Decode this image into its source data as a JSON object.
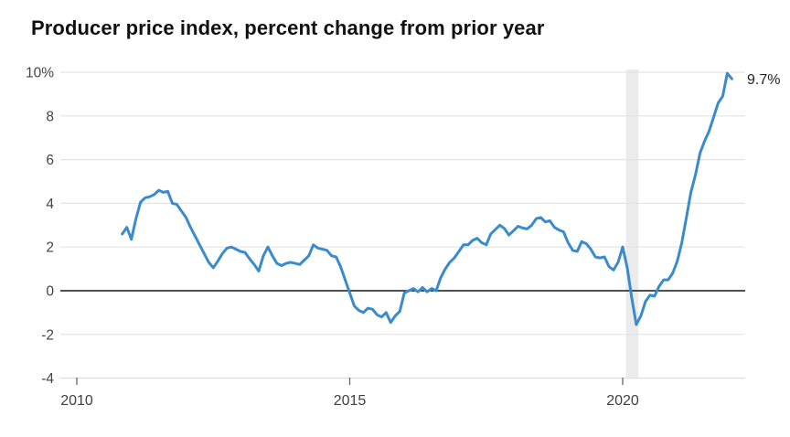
{
  "title": "Producer price index, percent change from prior year",
  "chart_data": {
    "type": "line",
    "title": "Producer price index, percent change from prior year",
    "series": [
      {
        "name": "Producer price index, percent change from prior year",
        "values": [
          2.6,
          2.9,
          2.35,
          3.3,
          4.05,
          4.25,
          4.3,
          4.4,
          4.6,
          4.5,
          4.55,
          4.0,
          3.95,
          3.65,
          3.35,
          2.9,
          2.5,
          2.1,
          1.7,
          1.3,
          1.05,
          1.35,
          1.7,
          1.95,
          2.0,
          1.9,
          1.8,
          1.75,
          1.45,
          1.2,
          0.9,
          1.6,
          2.0,
          1.6,
          1.25,
          1.15,
          1.25,
          1.3,
          1.25,
          1.2,
          1.4,
          1.6,
          2.1,
          1.95,
          1.9,
          1.85,
          1.6,
          1.55,
          1.1,
          0.5,
          -0.1,
          -0.7,
          -0.9,
          -1.0,
          -0.8,
          -0.85,
          -1.1,
          -1.2,
          -1.0,
          -1.45,
          -1.15,
          -0.95,
          -0.1,
          0.0,
          0.1,
          -0.05,
          0.15,
          -0.05,
          0.1,
          0.0,
          0.6,
          1.0,
          1.3,
          1.5,
          1.8,
          2.1,
          2.1,
          2.3,
          2.4,
          2.2,
          2.1,
          2.6,
          2.8,
          3.0,
          2.85,
          2.55,
          2.75,
          2.95,
          2.87,
          2.83,
          3.0,
          3.3,
          3.35,
          3.15,
          3.2,
          2.9,
          2.78,
          2.7,
          2.2,
          1.85,
          1.8,
          2.25,
          2.15,
          1.9,
          1.55,
          1.5,
          1.55,
          1.1,
          0.95,
          1.3,
          2.0,
          1.05,
          -0.35,
          -1.55,
          -1.15,
          -0.5,
          -0.2,
          -0.25,
          0.2,
          0.5,
          0.5,
          0.8,
          1.35,
          2.2,
          3.35,
          4.5,
          5.3,
          6.3,
          6.85,
          7.3,
          7.95,
          8.6,
          8.9,
          9.95,
          9.7
        ]
      }
    ],
    "frequency": "monthly",
    "start": {
      "year": 2010,
      "month": 11
    },
    "end": {
      "year": 2022,
      "month": 1
    },
    "end_annotation": {
      "text": "9.7%",
      "value": 9.7
    },
    "y_ticks": [
      {
        "label": "10%",
        "value": 10
      },
      {
        "label": "8",
        "value": 8
      },
      {
        "label": "6",
        "value": 6
      },
      {
        "label": "4",
        "value": 4
      },
      {
        "label": "2",
        "value": 2
      },
      {
        "label": "0",
        "value": 0
      },
      {
        "label": "-2",
        "value": -2
      },
      {
        "label": "-4",
        "value": -4
      }
    ],
    "x_ticks": [
      {
        "label": "2010",
        "year": 2010
      },
      {
        "label": "2015",
        "year": 2015
      },
      {
        "label": "2020",
        "year": 2020
      }
    ],
    "ylim": [
      -4,
      10
    ],
    "xlim_years": [
      2009.7,
      2022.25
    ],
    "grid": "horizontal",
    "zero_line": true,
    "legend": "none",
    "recession_band": {
      "start_year": 2020.06,
      "end_year": 2020.29
    },
    "colors": {
      "line": "#3a8bcd",
      "grid": "#e4e4e4",
      "zero_line": "#161616",
      "baseline": "#dedede",
      "band": "#ebebeb",
      "tick_mark": "#666666",
      "axis_text": "#444444",
      "title_text": "#111111",
      "annotation_text": "#222222"
    }
  }
}
